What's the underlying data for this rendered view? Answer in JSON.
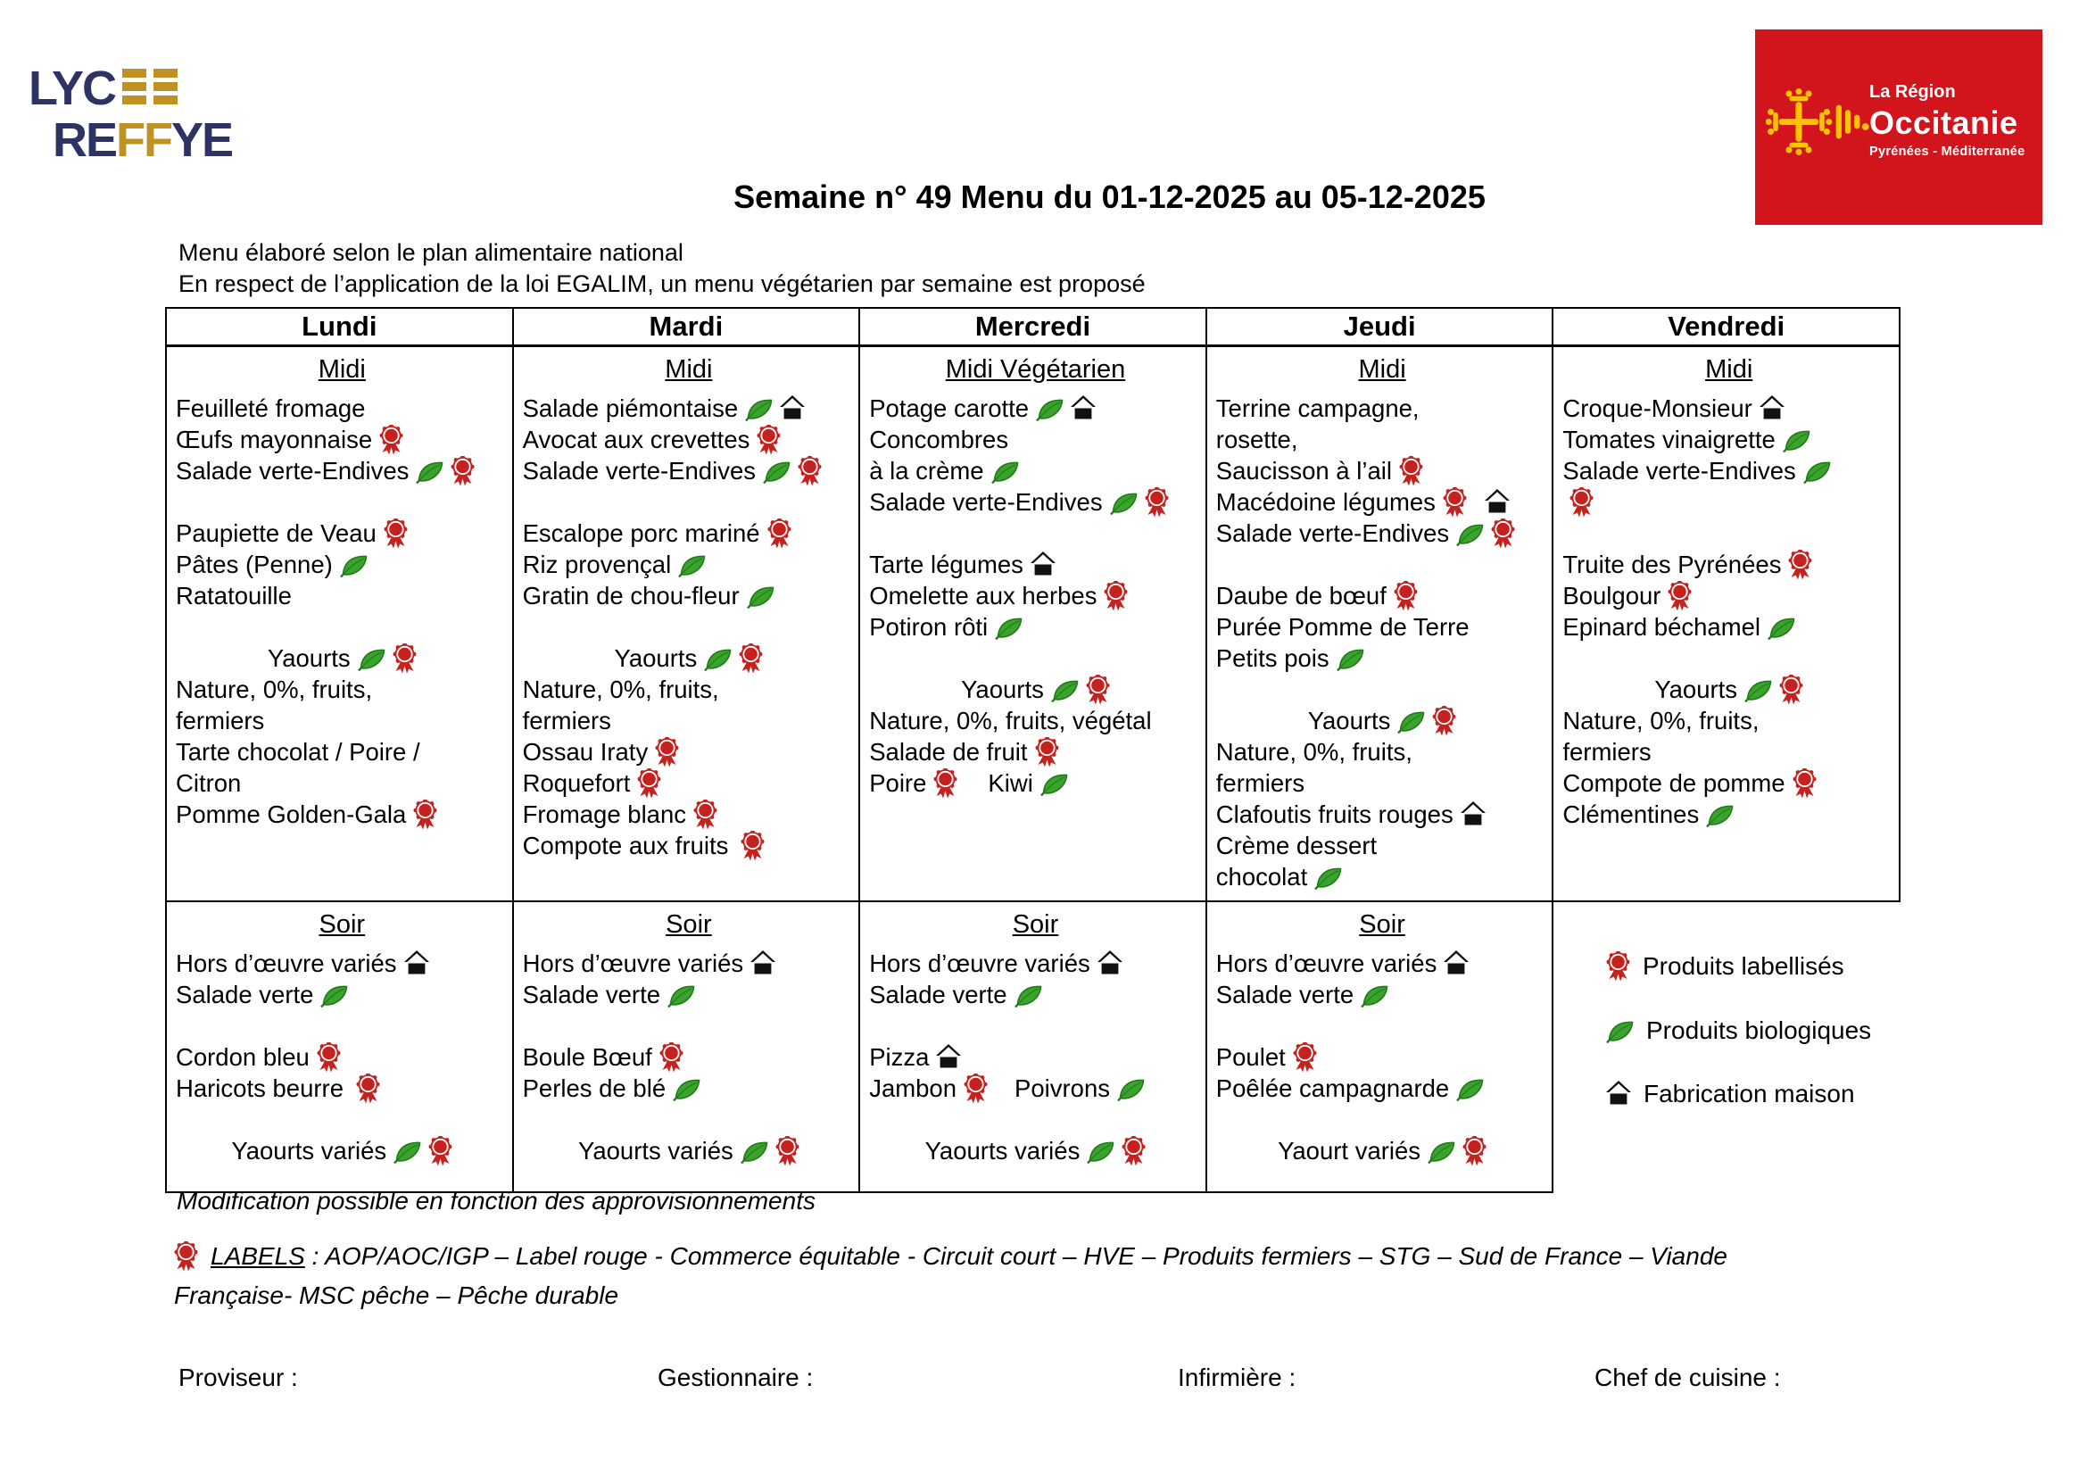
{
  "school_logo": {
    "line1": "LYC",
    "line2_a": "RE",
    "line2_b": "FF",
    "line2_c": "YE"
  },
  "region_logo": {
    "line1": "La Région",
    "line2": "Occitanie",
    "line3": "Pyrénées - Méditerranée",
    "bg_color": "#d2141c",
    "cross_color": "#ffc400"
  },
  "title": "Semaine n° 49 Menu du 01-12-2025 au 05-12-2025",
  "subtitle_line1": "Menu élaboré selon le plan alimentaire national",
  "subtitle_line2": "En respect de l’application de la loi EGALIM, un menu végétarien par semaine est proposé",
  "colors": {
    "label_red": "#c5221f",
    "bio_green": "#3aa32e",
    "home_black": "#111111"
  },
  "days": [
    {
      "name": "Lundi",
      "midi_title": "Midi",
      "midi_lines": [
        {
          "parts": [
            {
              "text": "Feuilleté fromage"
            }
          ]
        },
        {
          "parts": [
            {
              "text": "Œufs mayonnaise"
            },
            {
              "icon": "label"
            }
          ]
        },
        {
          "parts": [
            {
              "text": "Salade verte-Endives"
            },
            {
              "icon": "bio"
            },
            {
              "icon": "label"
            }
          ]
        },
        {
          "parts": []
        },
        {
          "parts": [
            {
              "text": "Paupiette de Veau"
            },
            {
              "icon": "label"
            }
          ]
        },
        {
          "parts": [
            {
              "text": "Pâtes (Penne)"
            },
            {
              "icon": "bio"
            }
          ]
        },
        {
          "parts": [
            {
              "text": "Ratatouille"
            }
          ]
        },
        {
          "parts": []
        },
        {
          "center": true,
          "parts": [
            {
              "text": "Yaourts"
            },
            {
              "icon": "bio"
            },
            {
              "icon": "label"
            }
          ]
        },
        {
          "parts": [
            {
              "text": "Nature, 0%, fruits,"
            }
          ]
        },
        {
          "parts": [
            {
              "text": "fermiers"
            }
          ]
        },
        {
          "parts": [
            {
              "text": "Tarte chocolat / Poire /"
            }
          ]
        },
        {
          "parts": [
            {
              "text": "Citron"
            }
          ]
        },
        {
          "parts": [
            {
              "text": "Pomme Golden-Gala"
            },
            {
              "icon": "label"
            }
          ]
        }
      ],
      "soir_title": "Soir",
      "soir_lines": [
        {
          "parts": [
            {
              "text": "Hors d’œuvre variés"
            },
            {
              "icon": "home"
            }
          ]
        },
        {
          "parts": [
            {
              "text": "Salade verte"
            },
            {
              "icon": "bio"
            }
          ]
        },
        {
          "parts": []
        },
        {
          "parts": [
            {
              "text": "Cordon bleu"
            },
            {
              "icon": "label"
            }
          ]
        },
        {
          "parts": [
            {
              "text": "Haricots beurre"
            },
            {
              "gap": 6
            },
            {
              "icon": "label"
            }
          ]
        },
        {
          "parts": []
        },
        {
          "center": true,
          "parts": [
            {
              "text": "Yaourts variés"
            },
            {
              "icon": "bio"
            },
            {
              "icon": "label"
            }
          ]
        }
      ]
    },
    {
      "name": "Mardi",
      "midi_title": "Midi",
      "midi_lines": [
        {
          "parts": [
            {
              "text": "Salade piémontaise"
            },
            {
              "icon": "bio"
            },
            {
              "icon": "home"
            }
          ]
        },
        {
          "parts": [
            {
              "text": "Avocat aux crevettes"
            },
            {
              "icon": "label"
            }
          ]
        },
        {
          "parts": [
            {
              "text": "Salade verte-Endives"
            },
            {
              "icon": "bio"
            },
            {
              "icon": "label"
            }
          ]
        },
        {
          "parts": []
        },
        {
          "parts": [
            {
              "text": "Escalope porc mariné"
            },
            {
              "icon": "label"
            }
          ]
        },
        {
          "parts": [
            {
              "text": "Riz provençal"
            },
            {
              "icon": "bio"
            }
          ]
        },
        {
          "parts": [
            {
              "text": "Gratin de chou-fleur"
            },
            {
              "icon": "bio"
            }
          ]
        },
        {
          "parts": []
        },
        {
          "center": true,
          "parts": [
            {
              "text": "Yaourts"
            },
            {
              "icon": "bio"
            },
            {
              "icon": "label"
            }
          ]
        },
        {
          "parts": [
            {
              "text": "Nature, 0%, fruits,"
            }
          ]
        },
        {
          "parts": [
            {
              "text": "fermiers"
            }
          ]
        },
        {
          "parts": [
            {
              "text": "Ossau Iraty"
            },
            {
              "icon": "label"
            }
          ]
        },
        {
          "parts": [
            {
              "text": "Roquefort"
            },
            {
              "icon": "label"
            }
          ]
        },
        {
          "parts": [
            {
              "text": "Fromage blanc"
            },
            {
              "icon": "label"
            }
          ]
        },
        {
          "parts": [
            {
              "text": "Compote aux fruits"
            },
            {
              "gap": 6
            },
            {
              "icon": "label"
            }
          ]
        }
      ],
      "soir_title": "Soir",
      "soir_lines": [
        {
          "parts": [
            {
              "text": "Hors d’œuvre variés"
            },
            {
              "icon": "home"
            }
          ]
        },
        {
          "parts": [
            {
              "text": "Salade verte"
            },
            {
              "icon": "bio"
            }
          ]
        },
        {
          "parts": []
        },
        {
          "parts": [
            {
              "text": "Boule Bœuf"
            },
            {
              "icon": "label"
            }
          ]
        },
        {
          "parts": [
            {
              "text": "Perles de blé"
            },
            {
              "icon": "bio"
            }
          ]
        },
        {
          "parts": []
        },
        {
          "center": true,
          "parts": [
            {
              "text": "Yaourts variés"
            },
            {
              "icon": "bio"
            },
            {
              "icon": "label"
            }
          ]
        }
      ]
    },
    {
      "name": "Mercredi",
      "midi_title": "Midi Végétarien",
      "midi_lines": [
        {
          "parts": [
            {
              "text": "Potage carotte"
            },
            {
              "icon": "bio"
            },
            {
              "icon": "home"
            }
          ]
        },
        {
          "parts": [
            {
              "text": "Concombres"
            }
          ]
        },
        {
          "parts": [
            {
              "text": "à la crème"
            },
            {
              "icon": "bio"
            }
          ]
        },
        {
          "parts": [
            {
              "text": "Salade verte-Endives"
            },
            {
              "icon": "bio"
            },
            {
              "icon": "label"
            }
          ]
        },
        {
          "parts": []
        },
        {
          "parts": [
            {
              "text": "Tarte légumes"
            },
            {
              "icon": "home"
            }
          ]
        },
        {
          "parts": [
            {
              "text": "Omelette aux herbes"
            },
            {
              "icon": "label"
            }
          ]
        },
        {
          "parts": [
            {
              "text": "Potiron rôti"
            },
            {
              "icon": "bio"
            }
          ]
        },
        {
          "parts": []
        },
        {
          "center": true,
          "parts": [
            {
              "text": "Yaourts"
            },
            {
              "icon": "bio"
            },
            {
              "icon": "label"
            }
          ]
        },
        {
          "parts": [
            {
              "text": "Nature, 0%, fruits, végétal"
            }
          ]
        },
        {
          "parts": [
            {
              "text": "Salade de fruit"
            },
            {
              "icon": "label"
            }
          ]
        },
        {
          "parts": [
            {
              "text": "Poire"
            },
            {
              "icon": "label"
            },
            {
              "gap": 34
            },
            {
              "text": "Kiwi"
            },
            {
              "icon": "bio"
            }
          ]
        }
      ],
      "soir_title": "Soir",
      "soir_lines": [
        {
          "parts": [
            {
              "text": "Hors d’œuvre variés"
            },
            {
              "icon": "home"
            }
          ]
        },
        {
          "parts": [
            {
              "text": "Salade verte"
            },
            {
              "icon": "bio"
            }
          ]
        },
        {
          "parts": []
        },
        {
          "parts": [
            {
              "text": "Pizza"
            },
            {
              "icon": "home"
            }
          ]
        },
        {
          "parts": [
            {
              "text": "Jambon"
            },
            {
              "icon": "label"
            },
            {
              "gap": 30
            },
            {
              "text": "Poivrons"
            },
            {
              "icon": "bio"
            }
          ]
        },
        {
          "parts": []
        },
        {
          "center": true,
          "parts": [
            {
              "text": "Yaourts variés"
            },
            {
              "icon": "bio"
            },
            {
              "icon": "label"
            }
          ]
        }
      ]
    },
    {
      "name": "Jeudi",
      "midi_title": "Midi",
      "midi_lines": [
        {
          "parts": [
            {
              "text": "Terrine campagne,"
            }
          ]
        },
        {
          "parts": [
            {
              "text": "rosette,"
            }
          ]
        },
        {
          "parts": [
            {
              "text": "Saucisson à l’ail"
            },
            {
              "icon": "label"
            }
          ]
        },
        {
          "parts": [
            {
              "text": "Macédoine légumes"
            },
            {
              "icon": "label"
            },
            {
              "gap": 12
            },
            {
              "icon": "home"
            }
          ]
        },
        {
          "parts": [
            {
              "text": "Salade verte-Endives"
            },
            {
              "icon": "bio"
            },
            {
              "icon": "label"
            }
          ]
        },
        {
          "parts": []
        },
        {
          "parts": [
            {
              "text": "Daube de bœuf"
            },
            {
              "icon": "label"
            }
          ]
        },
        {
          "parts": [
            {
              "text": "Purée Pomme de Terre"
            }
          ]
        },
        {
          "parts": [
            {
              "text": "Petits pois"
            },
            {
              "icon": "bio"
            }
          ]
        },
        {
          "parts": []
        },
        {
          "center": true,
          "parts": [
            {
              "text": "Yaourts"
            },
            {
              "icon": "bio"
            },
            {
              "icon": "label"
            }
          ]
        },
        {
          "parts": [
            {
              "text": "Nature, 0%, fruits,"
            }
          ]
        },
        {
          "parts": [
            {
              "text": "fermiers"
            }
          ]
        },
        {
          "parts": [
            {
              "text": "Clafoutis fruits rouges"
            },
            {
              "icon": "home"
            }
          ]
        },
        {
          "parts": [
            {
              "text": "Crème dessert"
            }
          ]
        },
        {
          "parts": [
            {
              "text": "chocolat"
            },
            {
              "icon": "bio"
            }
          ]
        }
      ],
      "soir_title": "Soir",
      "soir_lines": [
        {
          "parts": [
            {
              "text": "Hors d’œuvre variés"
            },
            {
              "icon": "home"
            }
          ]
        },
        {
          "parts": [
            {
              "text": "Salade verte"
            },
            {
              "icon": "bio"
            }
          ]
        },
        {
          "parts": []
        },
        {
          "parts": [
            {
              "text": "Poulet"
            },
            {
              "icon": "label"
            }
          ]
        },
        {
          "parts": [
            {
              "text": "Poêlée campagnarde"
            },
            {
              "icon": "bio"
            }
          ]
        },
        {
          "parts": []
        },
        {
          "center": true,
          "parts": [
            {
              "text": "Yaourt variés"
            },
            {
              "icon": "bio"
            },
            {
              "icon": "label"
            }
          ]
        }
      ]
    },
    {
      "name": "Vendredi",
      "midi_title": "Midi",
      "midi_lines": [
        {
          "parts": [
            {
              "text": "Croque-Monsieur"
            },
            {
              "icon": "home"
            }
          ]
        },
        {
          "parts": [
            {
              "text": "Tomates vinaigrette"
            },
            {
              "icon": "bio"
            }
          ]
        },
        {
          "parts": [
            {
              "text": "Salade verte-Endives"
            },
            {
              "icon": "bio"
            }
          ]
        },
        {
          "parts": [
            {
              "icon": "label"
            }
          ]
        },
        {
          "parts": []
        },
        {
          "parts": [
            {
              "text": "Truite des Pyrénées"
            },
            {
              "icon": "label"
            }
          ]
        },
        {
          "parts": [
            {
              "text": "Boulgour"
            },
            {
              "icon": "label"
            }
          ]
        },
        {
          "parts": [
            {
              "text": "Epinard béchamel"
            },
            {
              "icon": "bio"
            }
          ]
        },
        {
          "parts": []
        },
        {
          "center": true,
          "parts": [
            {
              "text": "Yaourts"
            },
            {
              "icon": "bio"
            },
            {
              "icon": "label"
            }
          ]
        },
        {
          "parts": [
            {
              "text": "Nature, 0%, fruits,"
            }
          ]
        },
        {
          "parts": [
            {
              "text": "fermiers"
            }
          ]
        },
        {
          "parts": [
            {
              "text": "Compote de pomme"
            },
            {
              "icon": "label"
            }
          ]
        },
        {
          "parts": [
            {
              "text": "Clémentines"
            },
            {
              "icon": "bio"
            }
          ]
        }
      ],
      "soir_title": null,
      "soir_lines": null
    }
  ],
  "legend": [
    {
      "icon": "label",
      "text": "Produits labellisés"
    },
    {
      "icon": "bio",
      "text": "Produits biologiques"
    },
    {
      "icon": "home",
      "text": "Fabrication maison"
    }
  ],
  "footer": {
    "modification_note": "Modification possible en fonction des approvisionnements",
    "labels_word": "LABELS",
    "labels_text_line1": " : AOP/AOC/IGP – Label rouge - Commerce équitable - Circuit court – HVE – Produits fermiers – STG – Sud de France – Viande",
    "labels_text_line2": "Française- MSC pêche – Pêche durable",
    "signatures": [
      "Proviseur :",
      "Gestionnaire :",
      "Infirmière :",
      "Chef de cuisine :"
    ]
  }
}
